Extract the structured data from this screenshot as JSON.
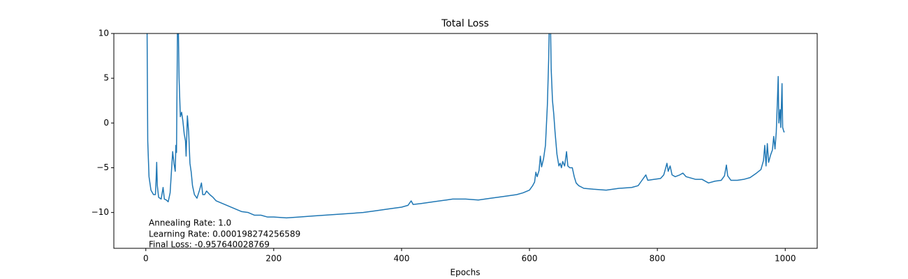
{
  "chart_data": {
    "type": "line",
    "title": "Total Loss",
    "xlabel": "Epochs",
    "annotations": [
      "Annealing Rate: 1.0",
      "Learning Rate: 0.000198274256589",
      "Final Loss: -0.957640028769"
    ],
    "color": "#1f77b4",
    "xlim": [
      -50,
      1050
    ],
    "ylim": [
      -14,
      10
    ],
    "xticks": [
      0,
      200,
      400,
      600,
      800,
      1000
    ],
    "yticks": [
      {
        "value": -10,
        "label": "−10"
      },
      {
        "value": -5,
        "label": "−5"
      },
      0,
      5,
      10
    ],
    "x": [
      0,
      2,
      3,
      5,
      8,
      12,
      15,
      16,
      17,
      18,
      20,
      24,
      27,
      29,
      32,
      35,
      38,
      40,
      42,
      44,
      46,
      47,
      48,
      50,
      52,
      54,
      56,
      58,
      60,
      62,
      63,
      64,
      65,
      67,
      69,
      71,
      73,
      76,
      80,
      84,
      87,
      89,
      92,
      95,
      100,
      105,
      110,
      120,
      130,
      140,
      150,
      160,
      170,
      180,
      190,
      200,
      220,
      240,
      260,
      280,
      300,
      320,
      340,
      360,
      380,
      400,
      410,
      415,
      418,
      430,
      450,
      470,
      480,
      500,
      520,
      540,
      560,
      580,
      590,
      600,
      605,
      608,
      610,
      612,
      615,
      617,
      619,
      622,
      625,
      628,
      630,
      632,
      634,
      636,
      638,
      640,
      643,
      646,
      648,
      650,
      652,
      655,
      658,
      660,
      663,
      667,
      670,
      673,
      677,
      685,
      700,
      720,
      740,
      760,
      770,
      775,
      780,
      782,
      785,
      795,
      805,
      810,
      812,
      815,
      817,
      820,
      823,
      828,
      835,
      840,
      845,
      860,
      870,
      880,
      890,
      900,
      905,
      908,
      910,
      915,
      925,
      935,
      945,
      955,
      962,
      966,
      968,
      970,
      972,
      974,
      977,
      980,
      982,
      984,
      986,
      988,
      989,
      990,
      992,
      993,
      995,
      996,
      998,
      999
    ],
    "values": [
      15,
      10,
      -2,
      -6,
      -7.5,
      -8,
      -8,
      -6.5,
      -4.4,
      -7,
      -8.3,
      -8.5,
      -7.2,
      -8.5,
      -8.6,
      -8.8,
      -7.8,
      -5.5,
      -3.2,
      -4.5,
      -5.4,
      -2.5,
      -3.3,
      15,
      5,
      0.7,
      1.2,
      0.2,
      -1.2,
      -2,
      -3.7,
      -1.5,
      0.8,
      -1,
      -4.5,
      -5.5,
      -7,
      -8,
      -8.4,
      -7.5,
      -6.7,
      -8,
      -8,
      -7.6,
      -8,
      -8.3,
      -8.7,
      -9,
      -9.3,
      -9.6,
      -9.9,
      -10,
      -10.3,
      -10.3,
      -10.5,
      -10.5,
      -10.6,
      -10.5,
      -10.4,
      -10.3,
      -10.2,
      -10.1,
      -10,
      -9.8,
      -9.6,
      -9.4,
      -9.2,
      -8.7,
      -9.1,
      -9,
      -8.8,
      -8.6,
      -8.5,
      -8.5,
      -8.6,
      -8.4,
      -8.2,
      -8,
      -7.8,
      -7.5,
      -7,
      -6.6,
      -5.5,
      -6,
      -5.3,
      -3.7,
      -4.9,
      -4,
      -2.5,
      2,
      7,
      15,
      6,
      2.5,
      1,
      -1,
      -3.5,
      -4.8,
      -4.5,
      -5,
      -4.3,
      -4.8,
      -3.2,
      -4.8,
      -5,
      -5,
      -6,
      -6.7,
      -7,
      -7.3,
      -7.4,
      -7.5,
      -7.3,
      -7.2,
      -7,
      -6.5,
      -6,
      -5.8,
      -6.4,
      -6.3,
      -6.2,
      -5.8,
      -5.3,
      -4.5,
      -5.4,
      -4.8,
      -5.8,
      -6,
      -5.8,
      -5.6,
      -6,
      -6.3,
      -6.3,
      -6.7,
      -6.5,
      -6.4,
      -5.9,
      -4.7,
      -5.9,
      -6.4,
      -6.4,
      -6.3,
      -6.1,
      -5.6,
      -5.2,
      -4.2,
      -2.5,
      -4.8,
      -2.3,
      -4.4,
      -3.6,
      -3,
      -1.5,
      -2.9,
      -1,
      3,
      5.2,
      0,
      1.5,
      -0.5,
      4.4,
      -0.5,
      -1,
      -0.96
    ]
  }
}
